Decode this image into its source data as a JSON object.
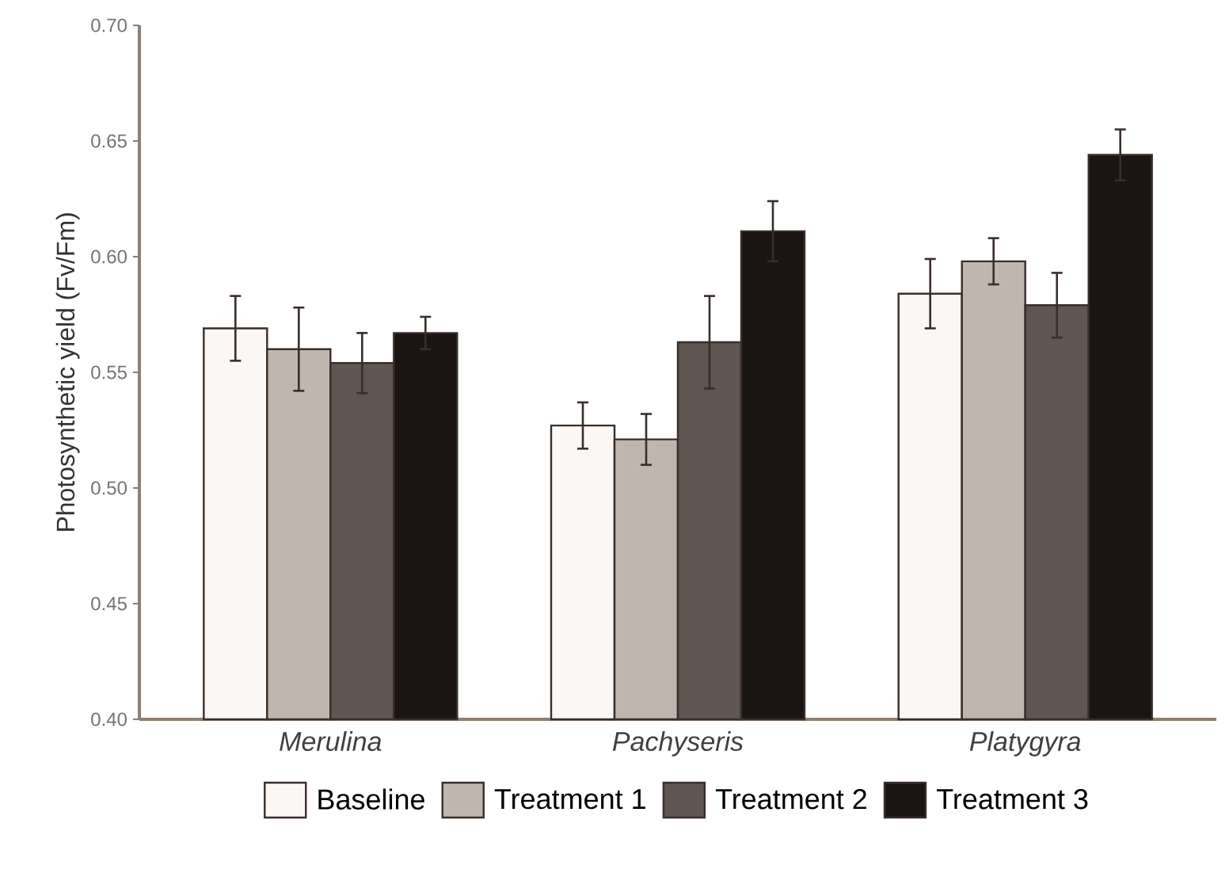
{
  "chart_data": {
    "type": "bar",
    "categories": [
      "Merulina",
      "Pachyseris",
      "Platygyra"
    ],
    "series": [
      {
        "name": "Baseline",
        "color": "#fbf7f4",
        "values": [
          0.569,
          0.527,
          0.584
        ],
        "errors": [
          0.014,
          0.01,
          0.015
        ]
      },
      {
        "name": "Treatment 1",
        "color": "#bfb6b0",
        "values": [
          0.56,
          0.521,
          0.598
        ],
        "errors": [
          0.018,
          0.011,
          0.01
        ]
      },
      {
        "name": "Treatment 2",
        "color": "#5f5651",
        "values": [
          0.554,
          0.563,
          0.579
        ],
        "errors": [
          0.013,
          0.02,
          0.014
        ]
      },
      {
        "name": "Treatment 3",
        "color": "#1a1513",
        "values": [
          0.567,
          0.611,
          0.644
        ],
        "errors": [
          0.007,
          0.013,
          0.011
        ]
      }
    ],
    "ylabel": "Photosynthetic yield (Fv/Fm)",
    "ylim": [
      0.4,
      0.7
    ],
    "yticks": [
      {
        "value": 0.4,
        "label": "0.40"
      },
      {
        "value": 0.45,
        "label": "0.45"
      },
      {
        "value": 0.5,
        "label": "0.50"
      },
      {
        "value": 0.55,
        "label": "0.55"
      },
      {
        "value": 0.6,
        "label": "0.60"
      },
      {
        "value": 0.65,
        "label": "0.65"
      },
      {
        "value": 0.7,
        "label": "0.70"
      }
    ],
    "legend": "bottom"
  }
}
